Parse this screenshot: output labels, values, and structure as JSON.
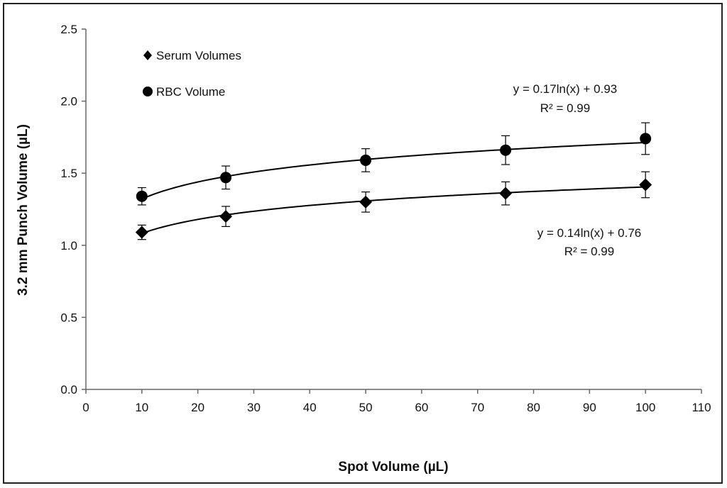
{
  "chart_data": {
    "type": "scatter",
    "title": "",
    "xlabel": "Spot Volume (µL)",
    "ylabel": "3.2 mm Punch Volume (µL)",
    "xlim": [
      0,
      110
    ],
    "ylim": [
      0.0,
      2.5
    ],
    "x_ticks": [
      "0",
      "10",
      "20",
      "30",
      "40",
      "50",
      "60",
      "70",
      "80",
      "90",
      "100",
      "110"
    ],
    "y_ticks": [
      "0.0",
      "0.5",
      "1.0",
      "1.5",
      "2.0",
      "2.5"
    ],
    "grid": false,
    "legend_position": "top-left",
    "series": [
      {
        "name": "Serum Volumes",
        "marker": "diamond",
        "x": [
          10,
          25,
          50,
          75,
          100
        ],
        "y": [
          1.09,
          1.2,
          1.3,
          1.36,
          1.42
        ],
        "error": [
          0.05,
          0.07,
          0.07,
          0.08,
          0.09
        ],
        "trendline": {
          "type": "logarithmic",
          "a": 0.14,
          "b": 0.76
        },
        "equation": "y = 0.14ln(x) + 0.76",
        "r_squared": "R² = 0.99"
      },
      {
        "name": "RBC Volume",
        "marker": "circle",
        "x": [
          10,
          25,
          50,
          75,
          100
        ],
        "y": [
          1.34,
          1.47,
          1.59,
          1.66,
          1.74
        ],
        "error": [
          0.06,
          0.08,
          0.08,
          0.1,
          0.11
        ],
        "trendline": {
          "type": "logarithmic",
          "a": 0.17,
          "b": 0.93
        },
        "equation": "y = 0.17ln(x) + 0.93",
        "r_squared": "R² = 0.99"
      }
    ]
  },
  "colors": {
    "marker": "#000000",
    "axis": "#666666",
    "text": "#111111"
  }
}
